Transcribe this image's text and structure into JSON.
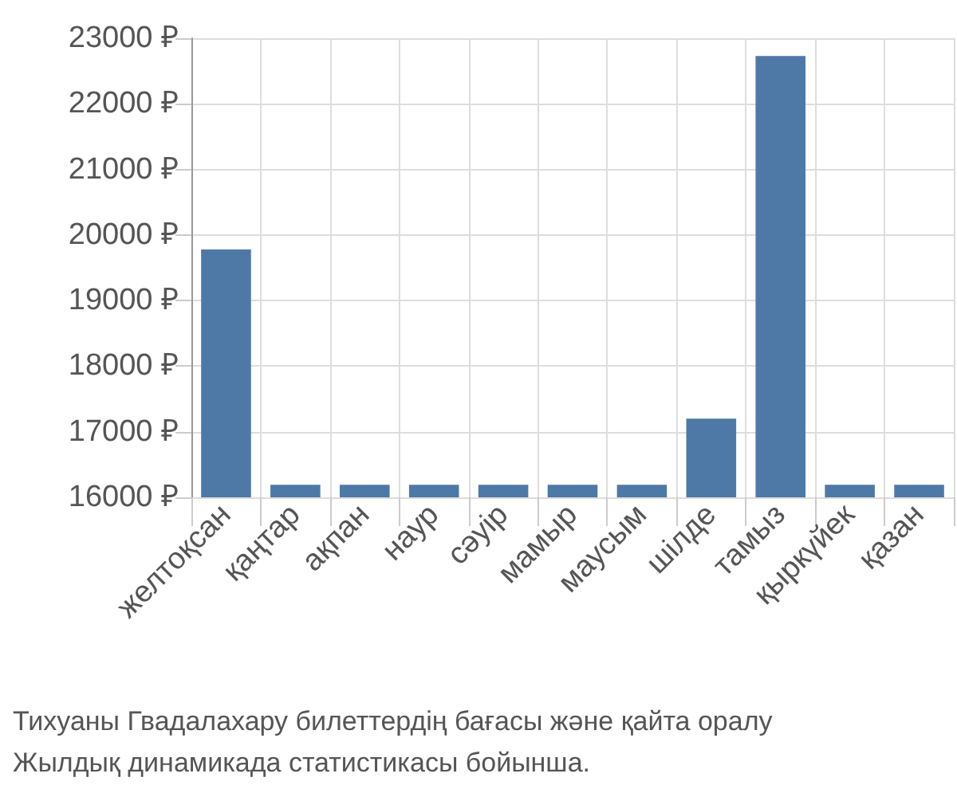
{
  "chart_data": {
    "type": "bar",
    "categories": [
      "желтоқсан",
      "қаңтар",
      "ақпан",
      "наур",
      "сәуір",
      "мамыр",
      "маусым",
      "шілде",
      "тамыз",
      "қыркүйек",
      "қазан"
    ],
    "values": [
      19780,
      16190,
      16190,
      16190,
      16190,
      16190,
      16190,
      17200,
      22730,
      16190,
      16190
    ],
    "color": "#4e79a7",
    "ylim": [
      16000,
      23000
    ],
    "yticks": [
      {
        "value": 16000,
        "label": "16000 ₽"
      },
      {
        "value": 17000,
        "label": "17000 ₽"
      },
      {
        "value": 18000,
        "label": "18000 ₽"
      },
      {
        "value": 19000,
        "label": "19000 ₽"
      },
      {
        "value": 20000,
        "label": "20000 ₽"
      },
      {
        "value": 21000,
        "label": "21000 ₽"
      },
      {
        "value": 22000,
        "label": "22000 ₽"
      },
      {
        "value": 23000,
        "label": "23000 ₽"
      }
    ],
    "grid": true,
    "annotations": [
      "Тихуаны Гвадалахару билеттердің бағасы және қайта оралу",
      "Жылдық динамикада статистикасы бойынша."
    ]
  }
}
